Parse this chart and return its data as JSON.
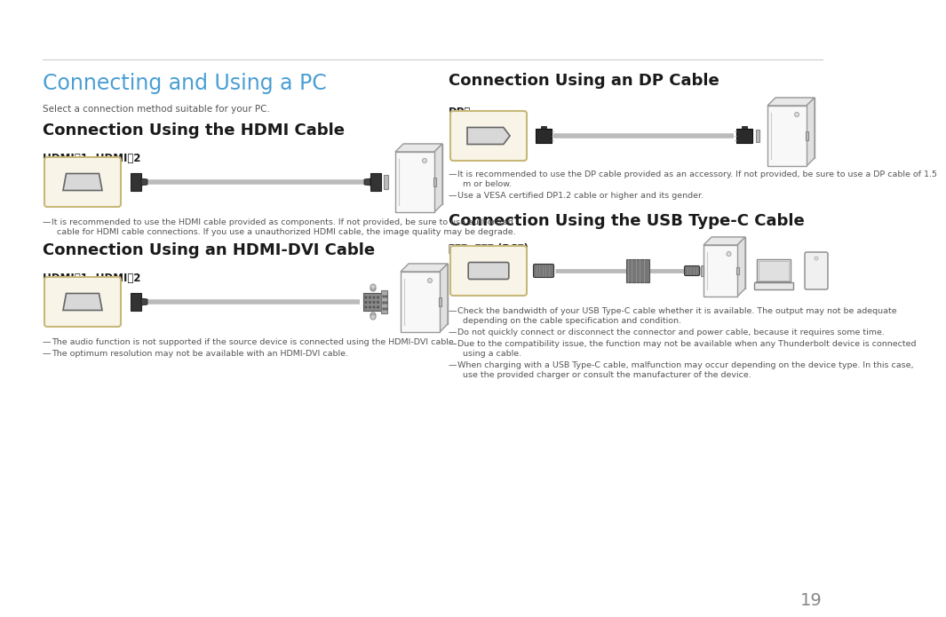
{
  "bg_color": "#ffffff",
  "title_color": "#4a9fd4",
  "heading_color": "#1a1a1a",
  "text_color": "#555555",
  "line_color": "#cccccc",
  "cable_color": "#bbbbbb",
  "port_box_color": "#c8b878",
  "port_box_face": "#f8f5e8",
  "connector_dark": "#444444",
  "connector_mid": "#666666",
  "connector_light": "#999999",
  "pc_edge": "#888888",
  "pc_face": "#f8f8f8",
  "page_number": "19",
  "main_title": "Connecting and Using a PC",
  "subtitle": "Select a connection method suitable for your PC.",
  "section1_title": "Connection Using the HDMI Cable",
  "section1_label": "HDMI⎌1, HDMI⎌2",
  "section1_note1": "It is recommended to use the HDMI cable provided as components. If not provided, be sure to use authorized",
  "section1_note2": "  cable for HDMI cable connections. If you use a unauthorized HDMI cable, the image quality may be degrade.",
  "section2_title": "Connection Using an HDMI-DVI Cable",
  "section2_label": "HDMI⎌1, HDMI⎌2",
  "section2_note1": "The audio function is not supported if the source device is connected using the HDMI-DVI cable.",
  "section2_note2": "The optimum resolution may not be available with an HDMI-DVI cable.",
  "section3_title": "Connection Using an DP Cable",
  "section3_label": "DP⎌",
  "section3_note1": "It is recommended to use the DP cable provided as an accessory. If not provided, be sure to use a DP cable of 1.5",
  "section3_note2": "  m or below.",
  "section3_note3": "Use a VESA certified DP1.2 cable or higher and its gender.",
  "section4_title": "Connection Using the USB Type-C Cable",
  "section4_label": "⎌⎌⎌, ⎌⎌⎌ (PC⎌)",
  "section4_note1": "Check the bandwidth of your USB Type-C cable whether it is available. The output may not be adequate",
  "section4_note2": "  depending on the cable specification and condition.",
  "section4_note3": "Do not quickly connect or disconnect the connector and power cable, because it requires some time.",
  "section4_note4": "Due to the compatibility issue, the function may not be available when any Thunderbolt device is connected",
  "section4_note5": "  using a cable.",
  "section4_note6": "When charging with a USB Type-C cable, malfunction may occur depending on the device type. In this case,",
  "section4_note7": "  use the provided charger or consult the manufacturer of the device."
}
